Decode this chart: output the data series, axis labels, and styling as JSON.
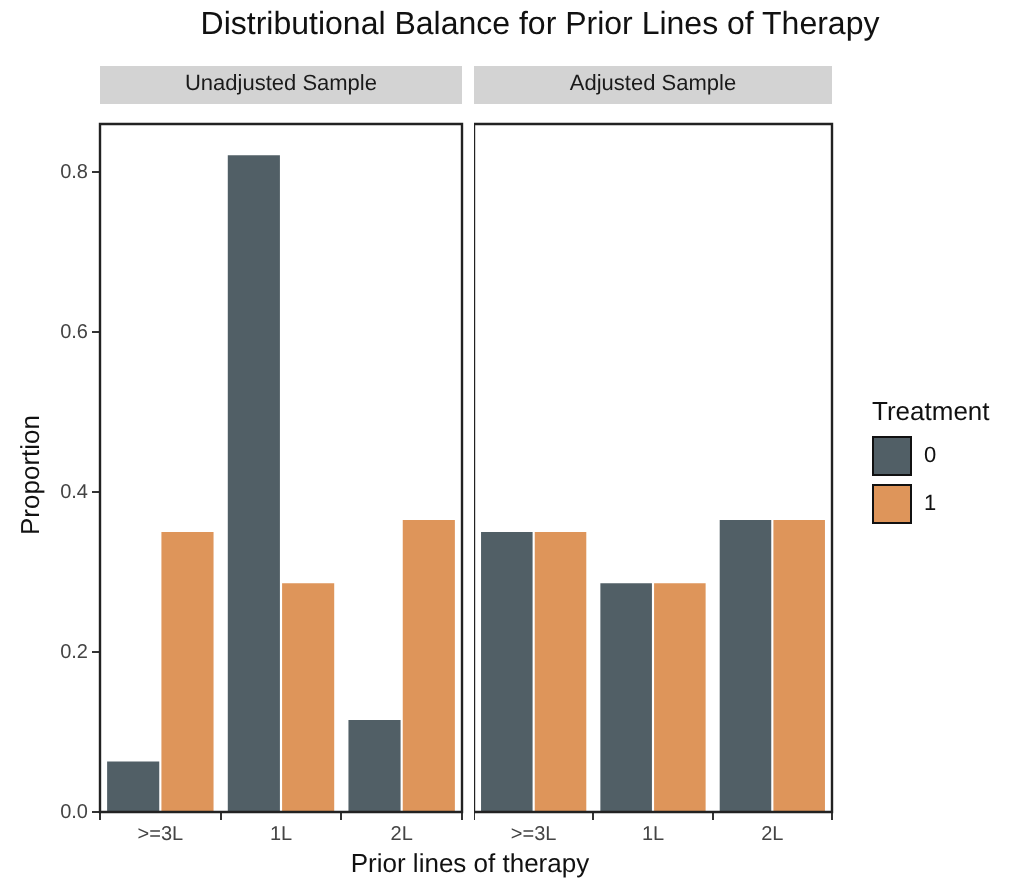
{
  "chart_data": [
    {
      "type": "bar",
      "title": "Distributional Balance for Prior Lines of Therapy",
      "subtitle": "Unadjusted Sample",
      "xlabel": "Prior lines of therapy",
      "ylabel": "Proportion",
      "categories": [
        ">=3L",
        "1L",
        "2L"
      ],
      "series": [
        {
          "color": "#515f66",
          "values": [
            0.063,
            0.821,
            0.115
          ]
        },
        {
          "color": "#de955a",
          "values": [
            0.35,
            0.286,
            0.365
          ]
        }
      ],
      "ylim": [
        0,
        0.86
      ],
      "yticks": [
        {
          "value": 0,
          "label": "0.0"
        },
        {
          "value": 0.2,
          "label": "0.2"
        },
        {
          "value": 0.4,
          "label": "0.4"
        },
        {
          "value": 0.6,
          "label": "0.6"
        },
        {
          "value": 0.8,
          "label": "0.8"
        }
      ],
      "grid": false,
      "legend": false
    },
    {
      "type": "bar",
      "subtitle": "Adjusted Sample",
      "legend_title": "Treatment",
      "categories": [
        ">=3L",
        "1L",
        "2L"
      ],
      "series": [
        {
          "name": "0",
          "color": "#515f66",
          "values": [
            0.35,
            0.286,
            0.365
          ]
        },
        {
          "name": "1",
          "color": "#de955a",
          "values": [
            0.35,
            0.286,
            0.365
          ]
        }
      ],
      "ylim": [
        0,
        0.86
      ],
      "grid": false,
      "legend": "right",
      "tick_labels": "x"
    }
  ]
}
